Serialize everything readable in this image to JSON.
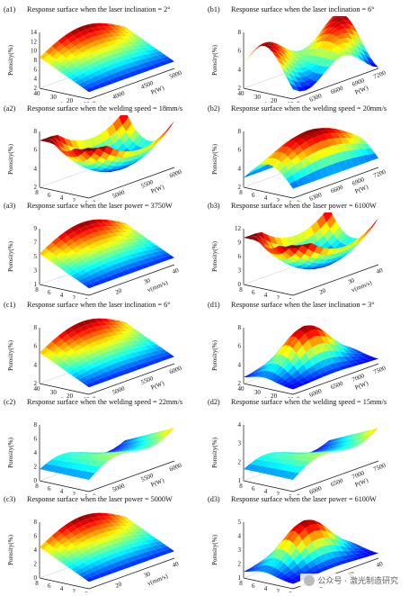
{
  "panels": [
    {
      "tag": "(a1)",
      "title": "Response surface when the laser inclination = 2°",
      "zlabel": "Porosity(%)",
      "zticks": [
        "14",
        "12",
        "10",
        "8",
        "6",
        "4",
        "2"
      ],
      "xlabel": "v(mm/s)",
      "xticks": [
        "40",
        "30",
        "20",
        "10"
      ],
      "ylabel": "P(W)",
      "yticks": [
        "3500",
        "4000",
        "4500",
        "5000"
      ],
      "style": "ridge"
    },
    {
      "tag": "(b1)",
      "title": "Response surface when the laser inclination = 6°",
      "zlabel": "Porosity(%)",
      "zticks": [
        "8",
        "6",
        "4",
        "2"
      ],
      "xlabel": "v(mm/s)",
      "xticks": [
        "40",
        "30",
        "20",
        "10"
      ],
      "ylabel": "P(W)",
      "yticks": [
        "6000",
        "6300",
        "6600",
        "6900",
        "7200"
      ],
      "style": "saddle"
    },
    {
      "tag": "(a2)",
      "title": "Response surface when the welding speed = 18mm/s",
      "zlabel": "Porosity(%)",
      "zticks": [
        "8",
        "6",
        "4",
        "2"
      ],
      "xlabel": "α(°)",
      "xticks": [
        "8",
        "6",
        "4",
        "2",
        "0"
      ],
      "ylabel": "P(W)",
      "yticks": [
        "4500",
        "5000",
        "5500",
        "6000"
      ],
      "style": "bowl"
    },
    {
      "tag": "(b2)",
      "title": "Response surface when the welding speed = 20mm/s",
      "zlabel": "Porosity(%)",
      "zticks": [
        "8",
        "6",
        "4",
        "2"
      ],
      "xlabel": "α(°)",
      "xticks": [
        "8",
        "6",
        "4",
        "2",
        "0"
      ],
      "ylabel": "P(W)",
      "yticks": [
        "6000",
        "6300",
        "6600",
        "6900",
        "7200"
      ],
      "style": "dome"
    },
    {
      "tag": "(a3)",
      "title": "Response surface when the laser power = 3750W",
      "zlabel": "Porosity(%)",
      "zticks": [
        "9",
        "7",
        "5",
        "3",
        "1"
      ],
      "xlabel": "α(°)",
      "xticks": [
        "8",
        "6",
        "4",
        "2",
        "0"
      ],
      "ylabel": "v(mm/s)",
      "yticks": [
        "10",
        "20",
        "30",
        "40"
      ],
      "style": "ridge"
    },
    {
      "tag": "(b3)",
      "title": "Response surface when the laser power = 6100W",
      "zlabel": "Porosity(%)",
      "zticks": [
        "12",
        "9",
        "6",
        "3",
        "0"
      ],
      "xlabel": "α(°)",
      "xticks": [
        "8",
        "6",
        "4",
        "2",
        "0"
      ],
      "ylabel": "v(mm/s)",
      "yticks": [
        "10",
        "20",
        "30",
        "40"
      ],
      "style": "bowl"
    },
    {
      "tag": "(c1)",
      "title": "Response surface when the laser inclination = 6°",
      "zlabel": "Porosity(%)",
      "zticks": [
        "8",
        "6",
        "4",
        "2"
      ],
      "xlabel": "v(mm/s)",
      "xticks": [
        "40",
        "30",
        "20",
        "10"
      ],
      "ylabel": "P(W)",
      "yticks": [
        "4500",
        "5000",
        "5500",
        "6000"
      ],
      "style": "ridge"
    },
    {
      "tag": "(d1)",
      "title": "Response surface when the laser inclination = 3°",
      "zlabel": "Porosity(%)",
      "zticks": [
        "8",
        "6",
        "4",
        "2"
      ],
      "xlabel": "v(mm/s)",
      "xticks": [
        "40",
        "30",
        "20",
        "10"
      ],
      "ylabel": "P(W)",
      "yticks": [
        "5500",
        "6000",
        "6500",
        "7000",
        "7500"
      ],
      "style": "peak"
    },
    {
      "tag": "(c2)",
      "title": "Response surface when the welding speed = 22mm/s",
      "zlabel": "Porosity(%)",
      "zticks": [
        "8",
        "6",
        "4",
        "2",
        "0"
      ],
      "xlabel": "α(°)",
      "xticks": [
        "8",
        "6",
        "4",
        "2",
        "0"
      ],
      "ylabel": "P(W)",
      "yticks": [
        "4500",
        "5000",
        "5500",
        "6000"
      ],
      "style": "flat"
    },
    {
      "tag": "(d2)",
      "title": "Response surface when the welding speed = 15mm/s",
      "zlabel": "Porosity(%)",
      "zticks": [
        "4",
        "3",
        "2",
        "1"
      ],
      "xlabel": "α(°)",
      "xticks": [
        "8",
        "6",
        "4",
        "2",
        "0"
      ],
      "ylabel": "P(W)",
      "yticks": [
        "5500",
        "6000",
        "6500",
        "7000",
        "7500"
      ],
      "style": "flat"
    },
    {
      "tag": "(c3)",
      "title": "Response surface when the laser power = 5000W",
      "zlabel": "Porosity(%)",
      "zticks": [
        "8",
        "6",
        "4",
        "2",
        "0"
      ],
      "xlabel": "α(°)",
      "xticks": [
        "8",
        "6",
        "4",
        "2",
        "0"
      ],
      "ylabel": "v(mm/s)",
      "yticks": [
        "10",
        "20",
        "30",
        "40"
      ],
      "style": "ridge"
    },
    {
      "tag": "(d3)",
      "title": "Response surface when the laser power = 6100W",
      "zlabel": "Porosity(%)",
      "zticks": [
        "5",
        "4",
        "3",
        "2",
        "1"
      ],
      "xlabel": "α(°)",
      "xticks": [
        "8",
        "6",
        "4",
        "2",
        "0"
      ],
      "ylabel": "v(mm/s)",
      "yticks": [
        "10",
        "20",
        "30",
        "40"
      ],
      "style": "peak"
    }
  ],
  "watermark": "公众号 · 激光制造研究"
}
